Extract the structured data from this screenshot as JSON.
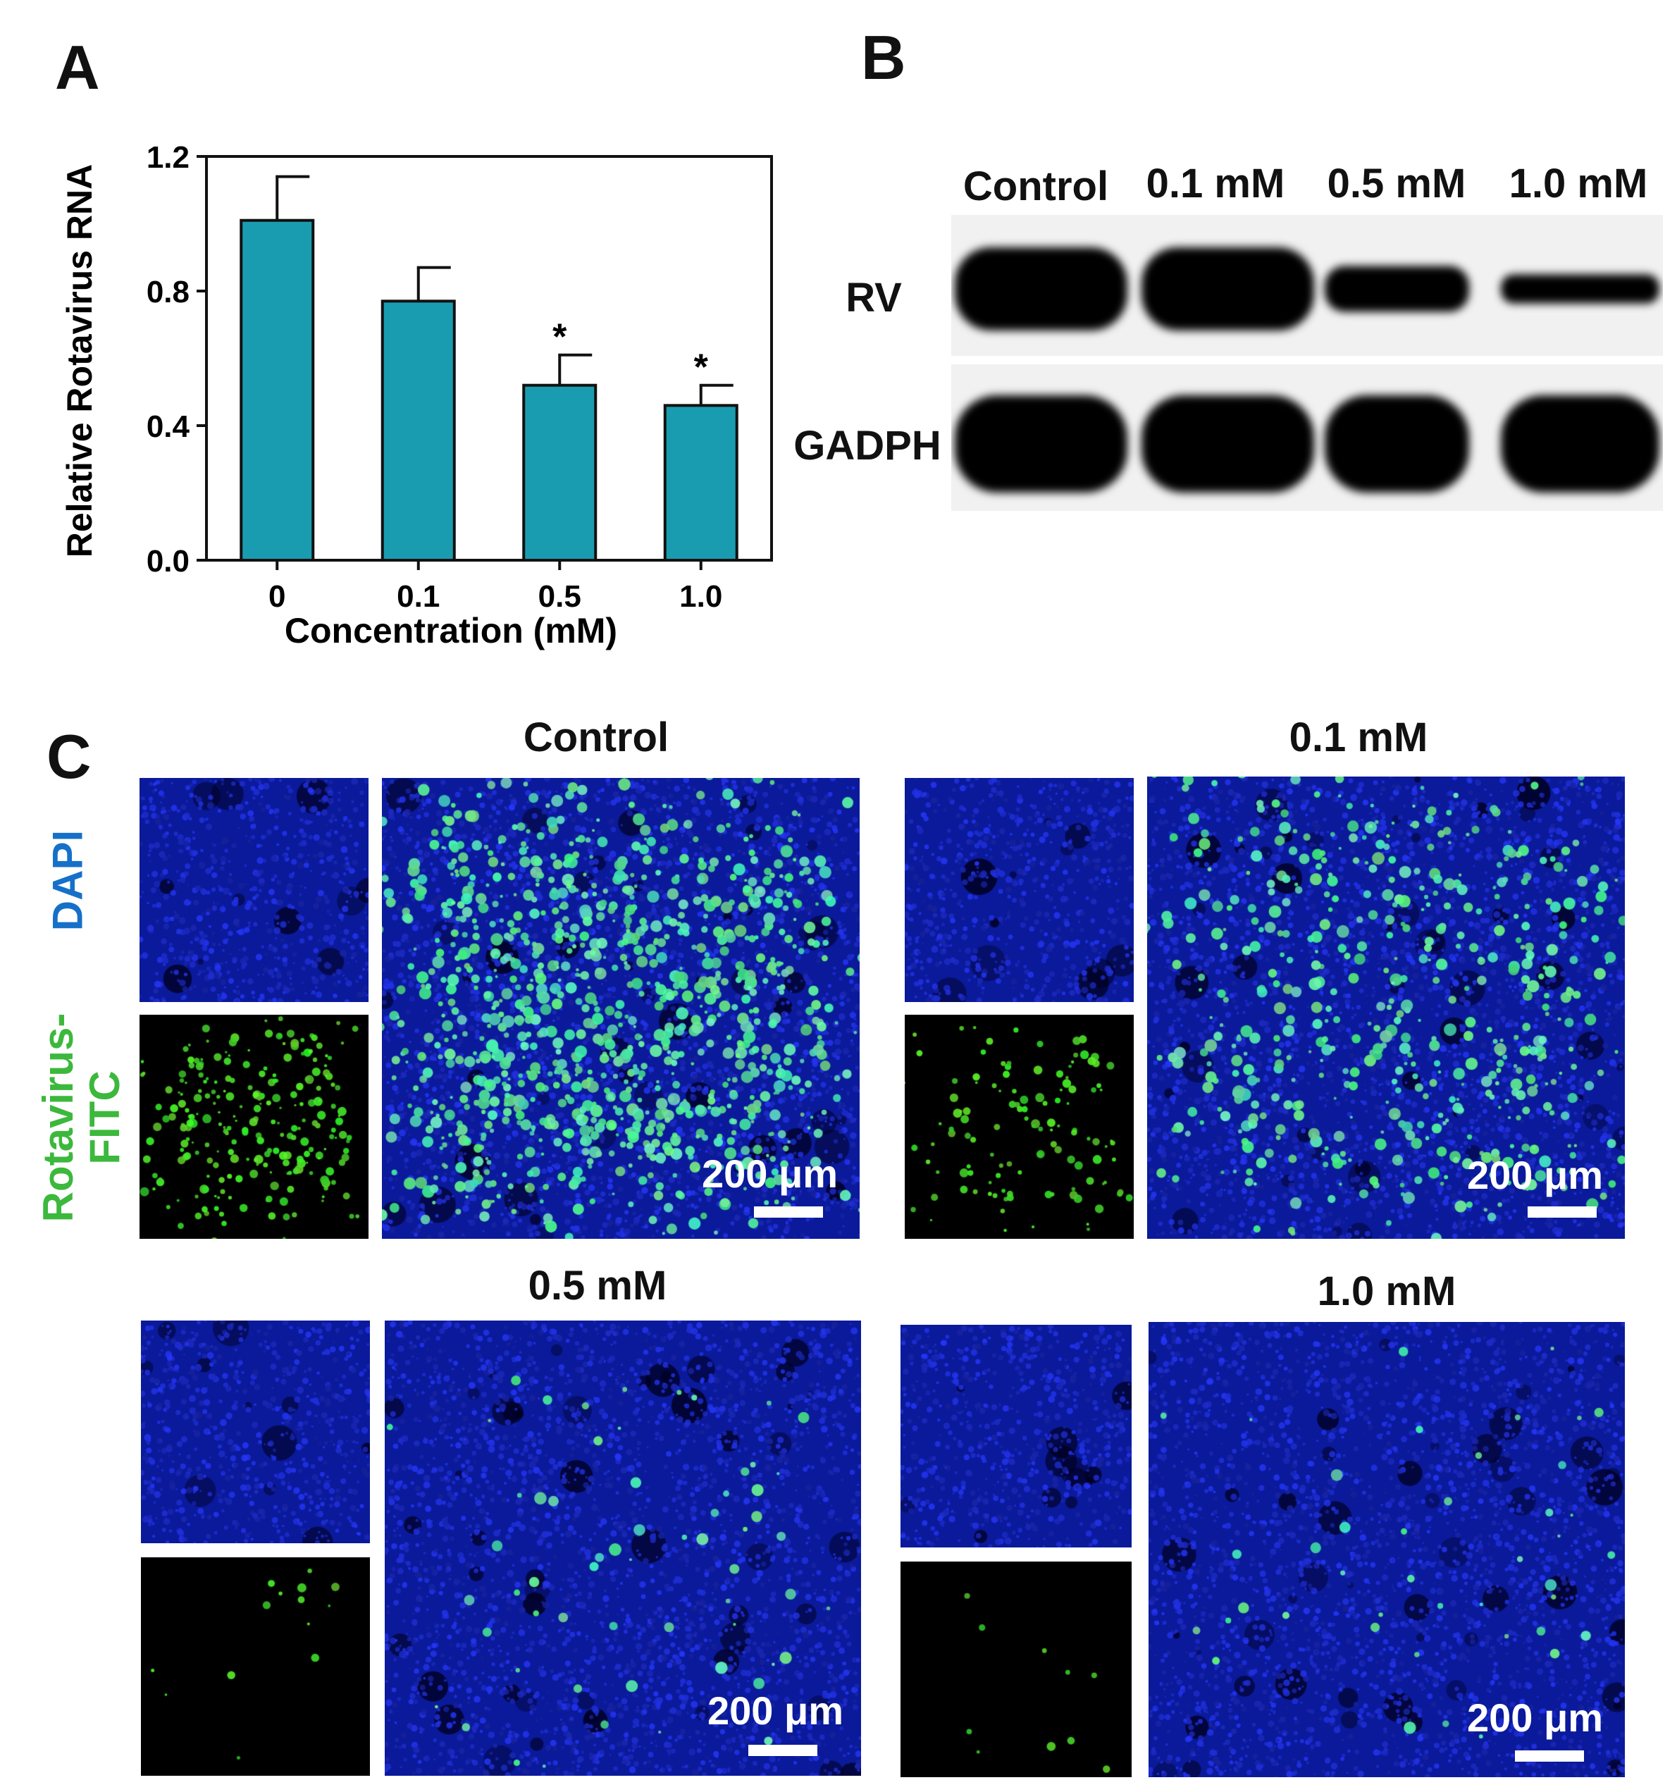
{
  "panels": {
    "a": "A",
    "b": "B",
    "c": "C"
  },
  "chart_data": {
    "type": "bar",
    "categories": [
      "0",
      "0.1",
      "0.5",
      "1.0"
    ],
    "values": [
      1.01,
      0.77,
      0.52,
      0.46
    ],
    "errors": [
      0.13,
      0.1,
      0.09,
      0.06
    ],
    "significance": [
      "",
      "",
      "*",
      "*"
    ],
    "xlabel": "Concentration (mM)",
    "ylabel": "Relative Rotavirus RNA",
    "ylim": [
      0,
      1.2
    ],
    "yticks": [
      "0.0",
      "0.4",
      "0.8",
      "1.2"
    ],
    "bar_color": "#1a9cb0",
    "grid": false
  },
  "western_blot": {
    "lanes": [
      "Control",
      "0.1 mM",
      "0.5 mM",
      "1.0 mM"
    ],
    "rows": [
      {
        "label": "RV",
        "intensity": [
          1.0,
          1.0,
          0.55,
          0.35
        ]
      },
      {
        "label": "GADPH",
        "intensity": [
          1.0,
          1.0,
          1.0,
          1.0
        ]
      }
    ]
  },
  "fluorescence": {
    "channel_labels": {
      "dapi": "DAPI",
      "fitc_line1": "Rotavirus-",
      "fitc_line2": "FITC"
    },
    "colors": {
      "dapi": "#1670c8",
      "fitc": "#3cb83c"
    },
    "groups": [
      {
        "title": "Control",
        "scale": "200 μm",
        "green_level": 1.0
      },
      {
        "title": "0.1 mM",
        "scale": "200 μm",
        "green_level": 0.5
      },
      {
        "title": "0.5 mM",
        "scale": "200 μm",
        "green_level": 0.06
      },
      {
        "title": "1.0 mM",
        "scale": "200 μm",
        "green_level": 0.04
      }
    ]
  }
}
